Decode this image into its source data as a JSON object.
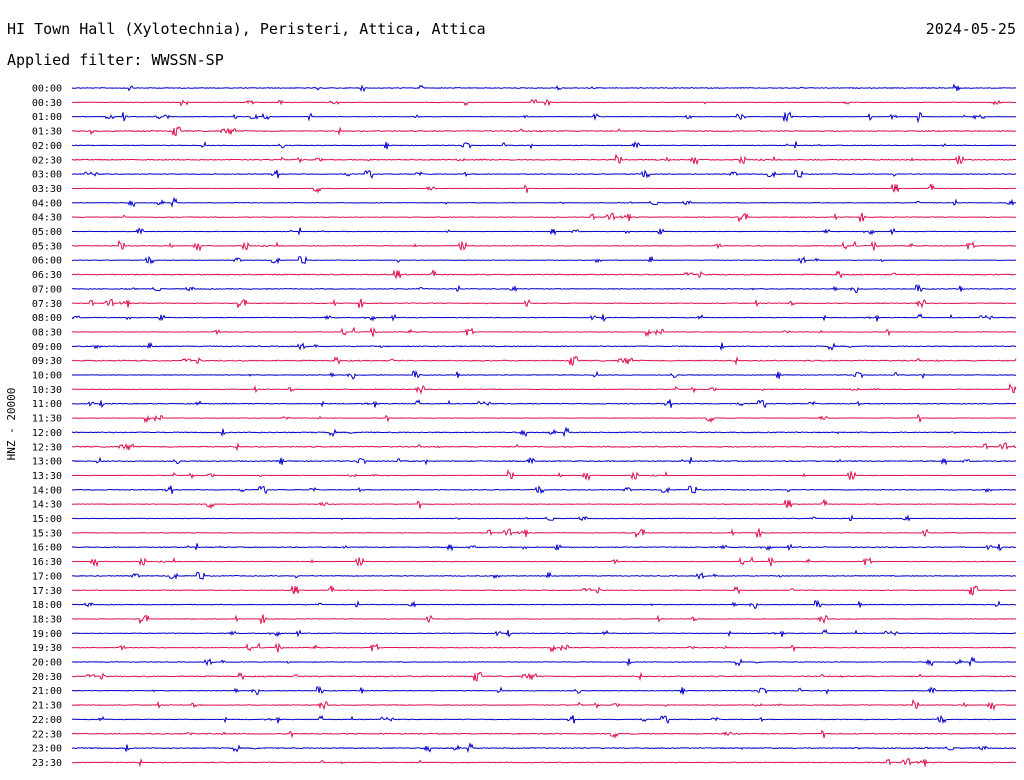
{
  "header": {
    "title": "HI Town Hall (Xylotechnia), Peristeri, Attica, Attica",
    "date": "2024-05-25",
    "filter": "Applied filter: WWSSN-SP"
  },
  "chart_data": {
    "type": "line",
    "chart_kind": "helicorder",
    "ylabel": "HNZ - 20000",
    "row_labels": [
      "00:00",
      "00:30",
      "01:00",
      "01:30",
      "02:00",
      "02:30",
      "03:00",
      "03:30",
      "04:00",
      "04:30",
      "05:00",
      "05:30",
      "06:00",
      "06:30",
      "07:00",
      "07:30",
      "08:00",
      "08:30",
      "09:00",
      "09:30",
      "10:00",
      "10:30",
      "11:00",
      "11:30",
      "12:00",
      "12:30",
      "13:00",
      "13:30",
      "14:00",
      "14:30",
      "15:00",
      "15:30",
      "16:00",
      "16:30",
      "17:00",
      "17:30",
      "18:00",
      "18:30",
      "19:00",
      "19:30",
      "20:00",
      "20:30",
      "21:00",
      "21:30",
      "22:00",
      "22:30",
      "23:00",
      "23:30"
    ],
    "series_colors": [
      "#0000cc",
      "#e0104a"
    ],
    "grid": false,
    "legend": "none"
  }
}
